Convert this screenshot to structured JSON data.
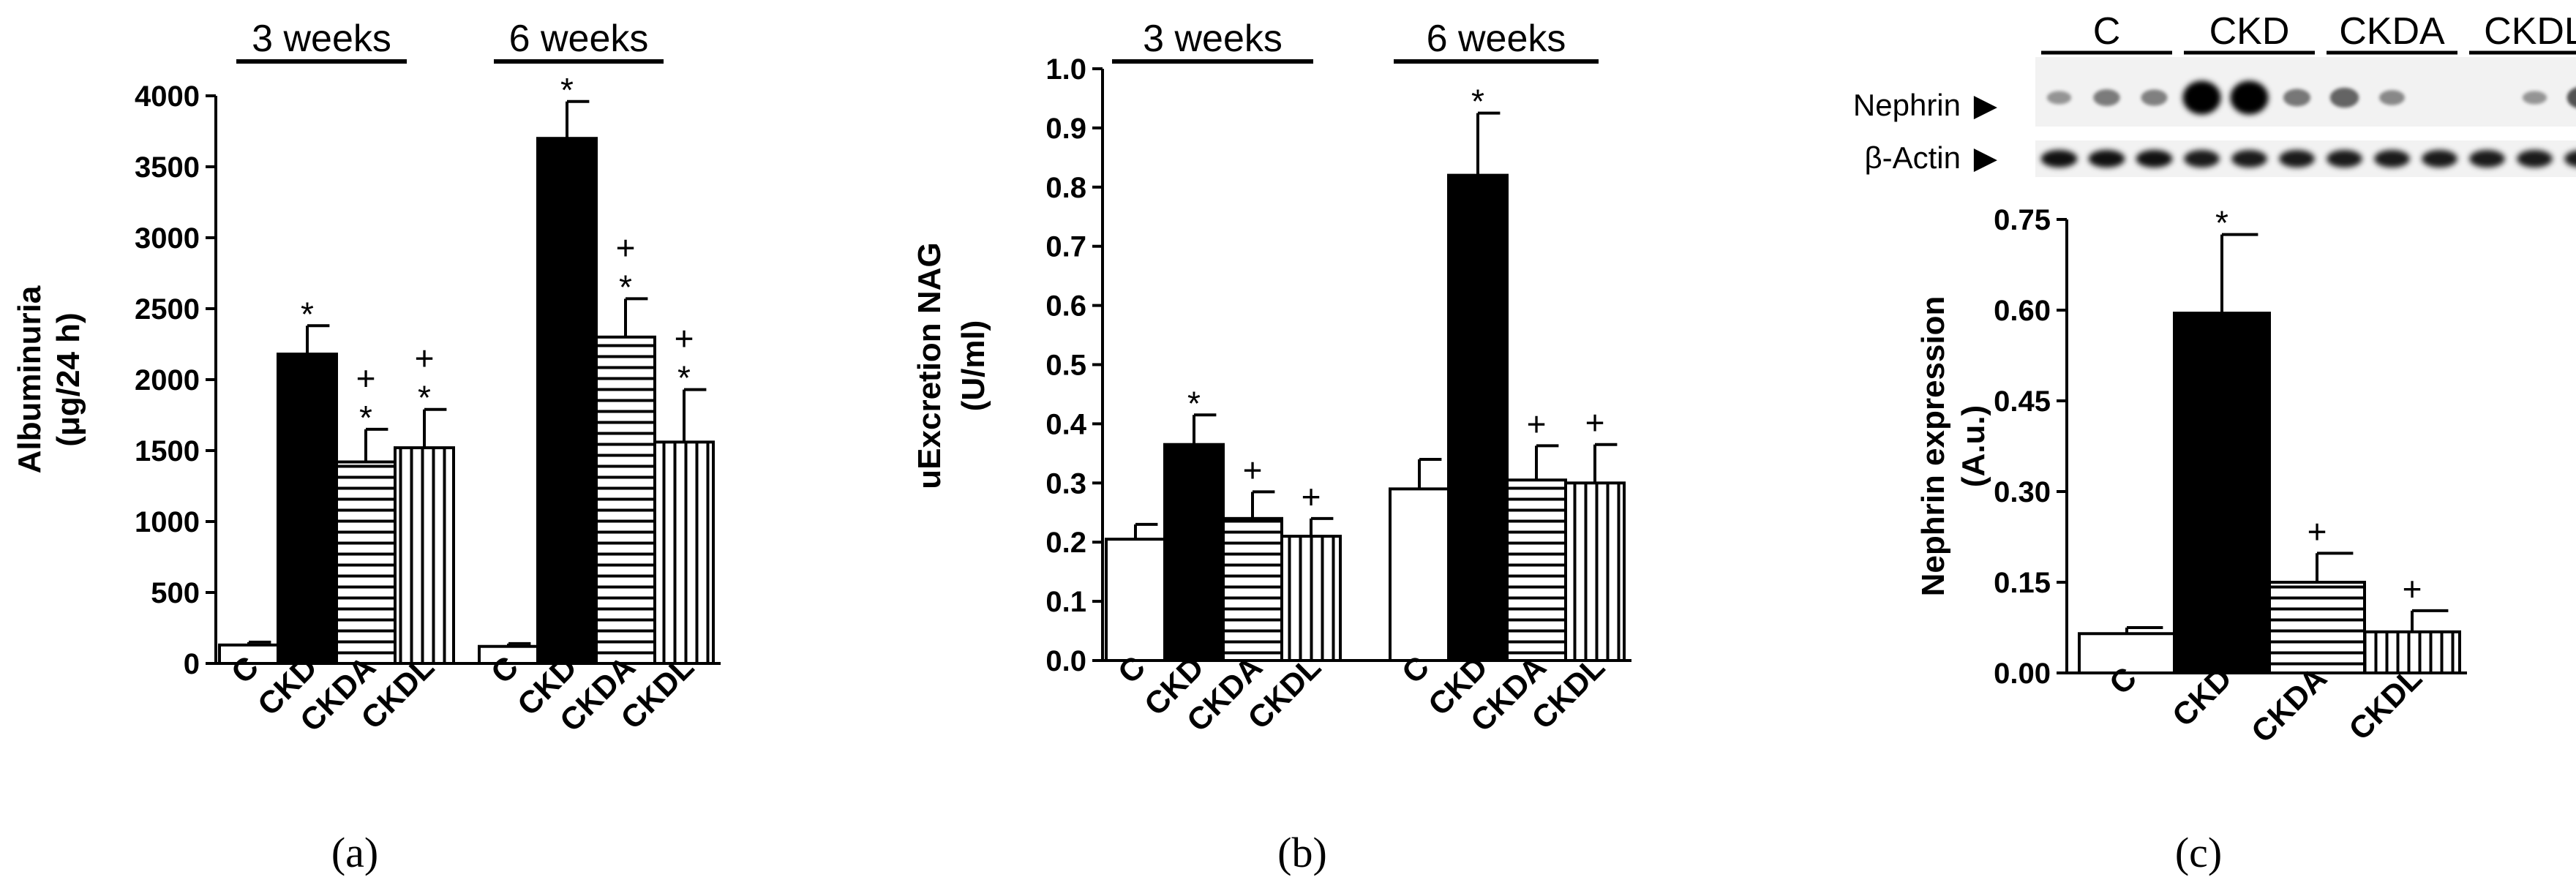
{
  "figure": {
    "panel_labels": [
      "(a)",
      "(b)",
      "(c)"
    ]
  },
  "colors": {
    "ink": "#000000",
    "paper": "#ffffff"
  },
  "chart_data": [
    {
      "id": "a",
      "type": "bar",
      "title": "",
      "xlabel": "",
      "ylabel": "Albuminuria",
      "ylabel_unit": "(μg/24 h)",
      "ylim": [
        0,
        4000
      ],
      "yticks": [
        "0",
        "500",
        "1000",
        "1500",
        "2000",
        "2500",
        "3000",
        "3500",
        "4000"
      ],
      "categories": [
        "C",
        "CKD",
        "CKDA",
        "CKDL"
      ],
      "fills": [
        "white",
        "black",
        "hstripe",
        "vstripe"
      ],
      "groups": [
        {
          "label": "3 weeks",
          "values": [
            130,
            2180,
            1420,
            1520
          ],
          "errors": [
            20,
            200,
            230,
            270
          ],
          "marks": [
            "",
            "*",
            "+\n*",
            "+\n*"
          ]
        },
        {
          "label": "6 weeks",
          "values": [
            120,
            3700,
            2300,
            1560
          ],
          "errors": [
            20,
            260,
            270,
            370
          ],
          "marks": [
            "",
            "*",
            "+\n*",
            "+\n*"
          ]
        }
      ]
    },
    {
      "id": "b",
      "type": "bar",
      "title": "",
      "xlabel": "",
      "ylabel": "uExcretion NAG",
      "ylabel_unit": "(U/ml)",
      "ylim": [
        0,
        1.0
      ],
      "yticks": [
        "0.0",
        "0.1",
        "0.2",
        "0.3",
        "0.4",
        "0.5",
        "0.6",
        "0.7",
        "0.8",
        "0.9",
        "1.0"
      ],
      "categories": [
        "C",
        "CKD",
        "CKDA",
        "CKDL"
      ],
      "fills": [
        "white",
        "black",
        "hstripe",
        "vstripe"
      ],
      "groups": [
        {
          "label": "3 weeks",
          "values": [
            0.205,
            0.365,
            0.24,
            0.21
          ],
          "errors": [
            0.025,
            0.05,
            0.045,
            0.03
          ],
          "marks": [
            "",
            "*",
            "+",
            "+"
          ]
        },
        {
          "label": "6 weeks",
          "values": [
            0.29,
            0.82,
            0.305,
            0.3
          ],
          "errors": [
            0.05,
            0.105,
            0.058,
            0.065
          ],
          "marks": [
            "",
            "*",
            "+",
            "+"
          ]
        }
      ]
    },
    {
      "id": "c",
      "type": "bar",
      "title": "",
      "xlabel": "",
      "ylabel": "Nephrin expression",
      "ylabel_unit": "(A.u.)",
      "ylim": [
        0,
        0.75
      ],
      "yticks": [
        "0.00",
        "0.15",
        "0.30",
        "0.45",
        "0.60",
        "0.75"
      ],
      "categories": [
        "C",
        "CKD",
        "CKDA",
        "CKDL"
      ],
      "fills": [
        "white",
        "black",
        "hstripe",
        "vstripe"
      ],
      "groups": [
        {
          "label": "",
          "values": [
            0.065,
            0.595,
            0.15,
            0.068
          ],
          "errors": [
            0.01,
            0.13,
            0.048,
            0.035
          ],
          "marks": [
            "",
            "*",
            "+",
            "+"
          ]
        }
      ],
      "blot": {
        "lane_groups": [
          "C",
          "CKD",
          "CKDA",
          "CKDL"
        ],
        "rows": [
          {
            "label": "Nephrin",
            "intensities": [
              0.18,
              0.32,
              0.3,
              1.0,
              1.0,
              0.35,
              0.45,
              0.25,
              0.0,
              0.0,
              0.18,
              0.55
            ]
          },
          {
            "label": "β-Actin",
            "intensities": [
              0.9,
              0.9,
              0.9,
              0.85,
              0.85,
              0.85,
              0.85,
              0.85,
              0.85,
              0.85,
              0.85,
              0.85
            ]
          }
        ],
        "marker_glyph": "▶"
      }
    }
  ]
}
